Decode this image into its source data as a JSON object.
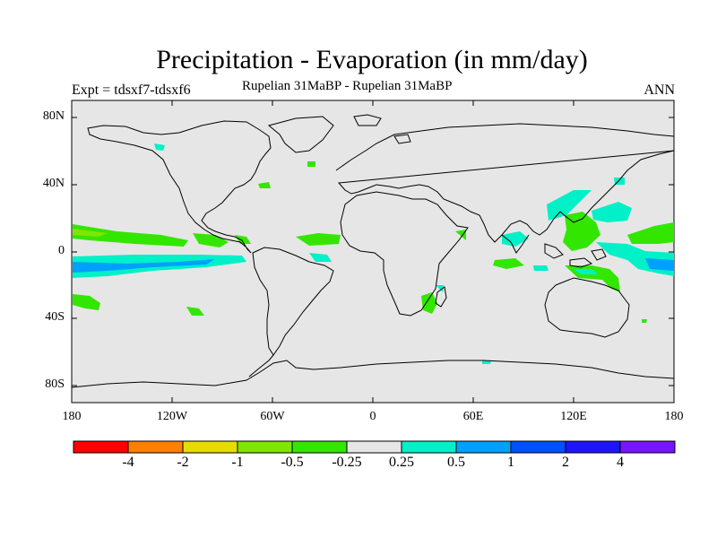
{
  "header": {
    "title": "Precipitation - Evaporation (in mm/day)",
    "experiment": "Expt = tdsxf7-tdsxf6",
    "subtitle": "Rupelian  31MaBP - Rupelian  31MaBP",
    "season": "ANN"
  },
  "map": {
    "lat_labels": [
      "80N",
      "40N",
      "0",
      "40S",
      "80S"
    ],
    "lon_labels": [
      "180",
      "120W",
      "60W",
      "0",
      "60E",
      "120E",
      "180"
    ],
    "ocean_color": "#e6e6e6",
    "coast_color": "#000000"
  },
  "colorbar": {
    "labels": [
      "-4",
      "-2",
      "-1",
      "-0.5",
      "-0.25",
      "0.25",
      "0.5",
      "1",
      "2",
      "4"
    ],
    "colors": [
      "#ff0000",
      "#ff7f00",
      "#e6dc00",
      "#7fe600",
      "#33e600",
      "#e6e6e6",
      "#00f0c8",
      "#00a0ff",
      "#0050ff",
      "#1e14ff",
      "#7814ff"
    ]
  },
  "anomalies": {
    "legend_green": "#33e600",
    "legend_lightgreen": "#7fe600",
    "legend_cyan": "#00f0c8",
    "legend_blue": "#00a0ff"
  }
}
